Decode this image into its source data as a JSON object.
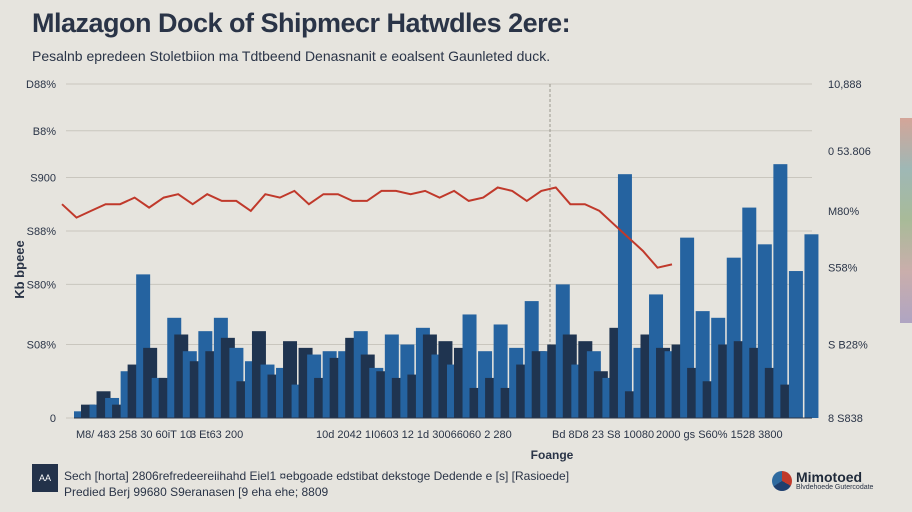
{
  "header": {
    "title": "Mlazagon Dock of Shipmecr Hatwdles 2ere:",
    "subtitle": "Pesalnb epredeen Stoletbiion ma Tdtbeend Denasnanit e eoalsent Gaunleted duck."
  },
  "ylabel": "Kb bpeee",
  "colors": {
    "background": "#e6e4de",
    "bar_dark": "#1f3450",
    "bar_blue": "#2563a0",
    "line": "#c0392b"
  },
  "chart_data": {
    "type": "bar",
    "title": "Mlazagon Dock of Shipmecr Hatwdles 2ere:",
    "xlabel": "Foange",
    "ylabel": "Kb bpeee",
    "left_ticks": [
      "0",
      "S08%",
      "S80%",
      "S88%",
      "S900",
      "B8%",
      "D88%"
    ],
    "right_ticks": [
      "8 S838",
      "S B28%",
      "S58%",
      "M80%",
      "0 53.806",
      "10,888"
    ],
    "x_tick_labels": [
      "M8/ 483 258 30 60iT 10",
      "3 Et63 200",
      "10d 2042 1I0603 12 1d 30066060 2 280",
      "Bd 8D8 23 S8 10080",
      "2000 gs S60% 1528 3800"
    ],
    "grid": true,
    "ylim": [
      0,
      100
    ],
    "dark_series": [
      4,
      8,
      4,
      16,
      21,
      12,
      25,
      17,
      20,
      24,
      11,
      26,
      13,
      23,
      21,
      12,
      18,
      24,
      19,
      14,
      12,
      13,
      25,
      23,
      21,
      9,
      12,
      9,
      16,
      20,
      22,
      25,
      23,
      14,
      27,
      8,
      25,
      21,
      22,
      15,
      11,
      22,
      23,
      21,
      15,
      10
    ],
    "blue_series": [
      2,
      4,
      6,
      14,
      43,
      12,
      30,
      20,
      26,
      30,
      21,
      17,
      16,
      15,
      10,
      19,
      20,
      20,
      26,
      15,
      25,
      22,
      27,
      19,
      16,
      31,
      20,
      28,
      21,
      35,
      20,
      40,
      16,
      20,
      12,
      73,
      21,
      37,
      20,
      54,
      32,
      30,
      48,
      63,
      52,
      76,
      44,
      55
    ],
    "line_series": {
      "x": [
        0,
        2,
        4,
        6,
        8,
        10,
        12,
        14,
        16,
        18,
        20,
        22,
        24,
        26,
        28,
        30,
        32,
        34,
        36,
        38,
        40,
        42,
        44,
        46,
        48,
        50,
        52,
        54,
        56,
        58,
        60,
        62,
        64,
        66,
        68,
        70,
        72,
        74,
        76,
        78,
        80,
        82,
        84
      ],
      "y": [
        64,
        60,
        62,
        64,
        64,
        66,
        63,
        66,
        67,
        64,
        67,
        65,
        65,
        62,
        67,
        66,
        68,
        64,
        67,
        67,
        65,
        65,
        68,
        68,
        67,
        68,
        66,
        68,
        65,
        66,
        69,
        68,
        65,
        68,
        69,
        64,
        64,
        62,
        58,
        54,
        50,
        45,
        46
      ]
    }
  },
  "footer": {
    "logo_text": "AA",
    "line1": "Sech [horta] 2806refredeereiihahd Eiel1 ¤ebgoade edstibat dekstoge Dedende e [s] [Rasioede]",
    "line2": "Predied Berj 99680 S9eranasen [9 eha ehe; 8809",
    "brand_name": "Mimotoed",
    "brand_sub": "Blvdehoede Gutercodate"
  }
}
